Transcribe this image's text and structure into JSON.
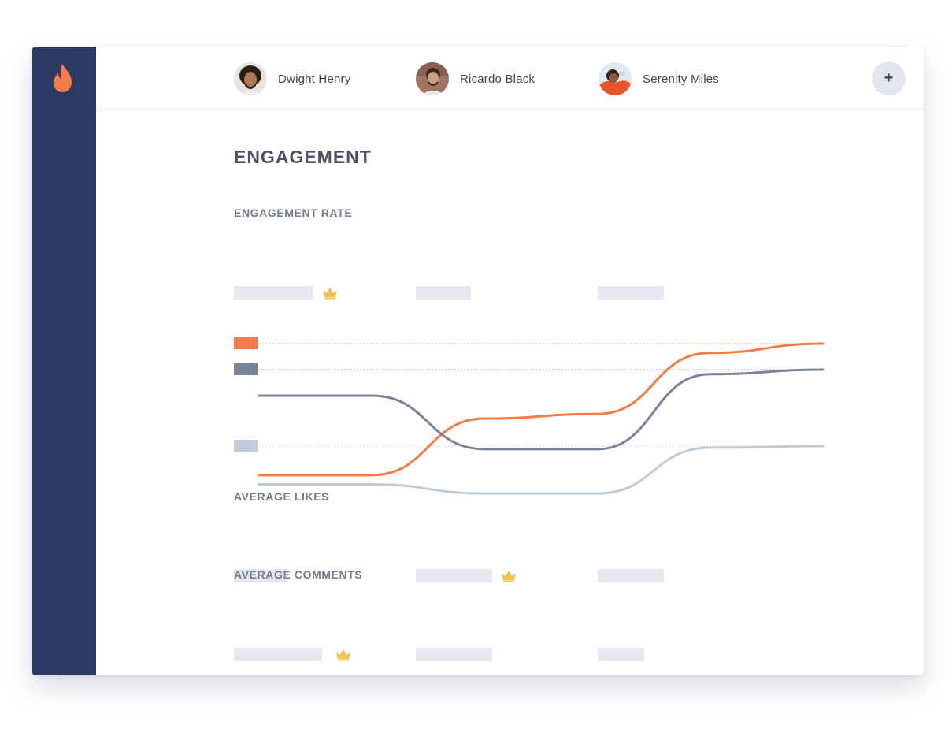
{
  "header": {
    "profiles": [
      {
        "name": "Dwight Henry"
      },
      {
        "name": "Ricardo Black"
      },
      {
        "name": "Serenity Miles"
      }
    ],
    "add_label": "+"
  },
  "main": {
    "title": "ENGAGEMENT",
    "sections": {
      "engagement_rate": "ENGAGEMENT RATE",
      "average_likes": "AVERAGE LIKES",
      "average_comments": "AVERAGE COMMENTS"
    }
  },
  "colors": {
    "sidebar": "#2d3a61",
    "accent": "#f47a48",
    "series_dark": "#76839a",
    "series_light": "#bfcbd8",
    "placeholder": "#e5e8ef",
    "crown": "#f1c24c"
  },
  "icons": {
    "logo": "flame-icon",
    "add": "plus-icon",
    "winner": "crown-icon"
  },
  "chart_data": {
    "type": "line",
    "title": "",
    "xlabel": "",
    "ylabel": "",
    "x": [
      0,
      1,
      2,
      3,
      4,
      5
    ],
    "series": [
      {
        "color": "#f47a48",
        "values": [
          1.4,
          1.4,
          5.1,
          5.4,
          9.4,
          10.0
        ]
      },
      {
        "color": "#76839a",
        "values": [
          6.6,
          6.6,
          3.1,
          3.1,
          8.0,
          8.3
        ]
      },
      {
        "color": "#bfcbd8",
        "values": [
          0.8,
          0.8,
          0.2,
          0.2,
          3.2,
          3.3
        ]
      }
    ],
    "ylim": [
      0,
      10
    ],
    "grid": "dotted reference lines at series end values",
    "legend": "left color swatches"
  }
}
